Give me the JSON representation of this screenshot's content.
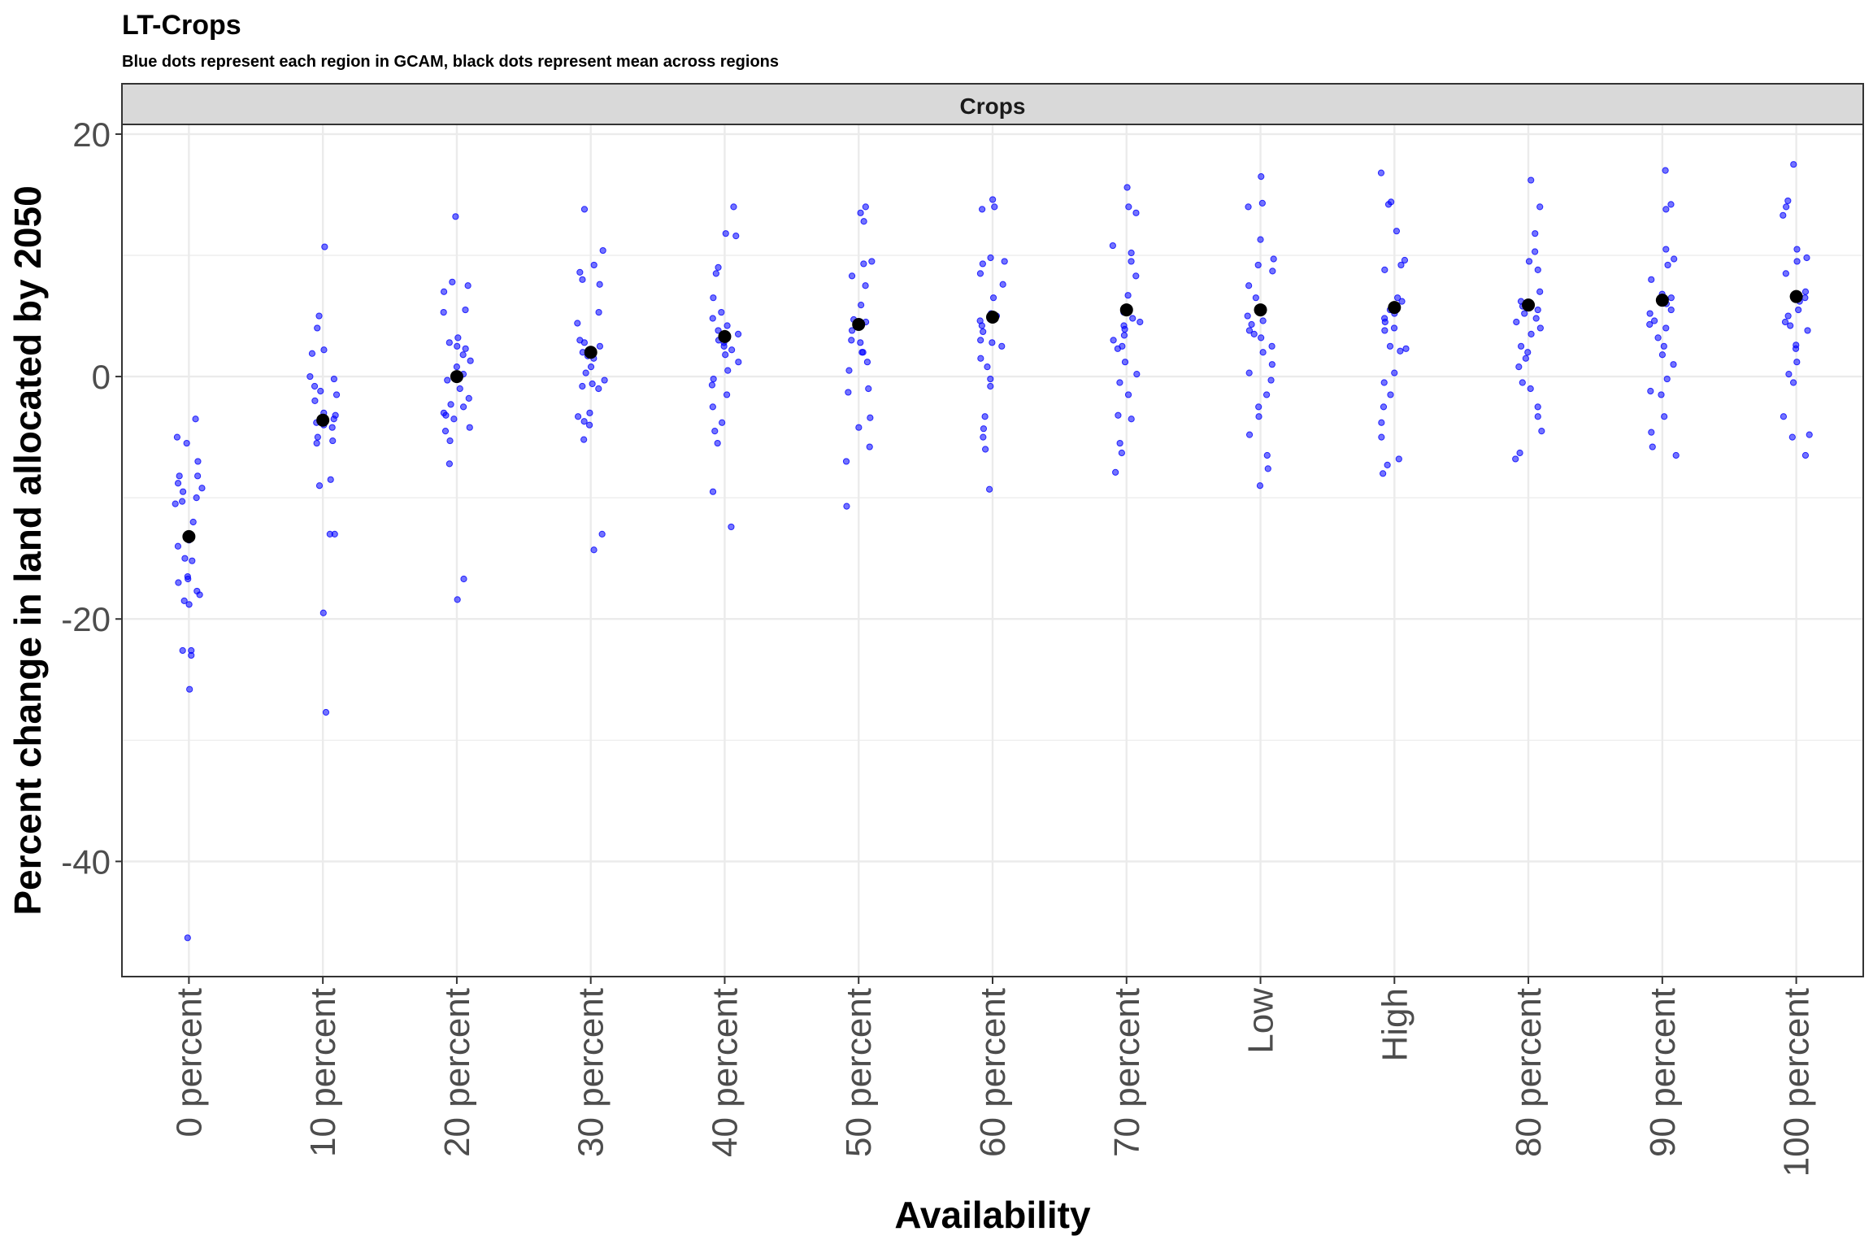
{
  "chart_data": {
    "type": "scatter",
    "title": "LT-Crops",
    "subtitle": "Blue dots represent each region in GCAM, black dots represent mean across regions",
    "facet_label": "Crops",
    "xlabel": "Availability",
    "ylabel": "Percent change in land allocated by 2050",
    "categories": [
      "0 percent",
      "10 percent",
      "20 percent",
      "30 percent",
      "40 percent",
      "50 percent",
      "60 percent",
      "70 percent",
      "Low",
      "High",
      "80 percent",
      "90 percent",
      "100 percent"
    ],
    "ylim": [
      -49.5,
      20.8
    ],
    "yticks": [
      20,
      0,
      -20,
      -40
    ],
    "ytick_labels": [
      "20",
      "0",
      "-20",
      "-40"
    ],
    "grid": true,
    "colors": {
      "region_points": "#0000ff",
      "mean_points": "#000000",
      "grid": "#ebebeb",
      "strip_background": "#d9d9d9",
      "panel_border": "#333333"
    },
    "series": [
      {
        "name": "Blue dots",
        "values": [
          [
            -3.5,
            -5.0,
            -5.5,
            -7.0,
            -8.2,
            -8.2,
            -8.8,
            -9.2,
            -9.5,
            -10.0,
            -10.5,
            -10.3,
            -12.0,
            -13.5,
            -14.0,
            -15.0,
            -15.2,
            -16.5,
            -16.7,
            -17.0,
            -17.7,
            -18.0,
            -18.5,
            -18.8,
            -22.6,
            -22.6,
            -23.0,
            -25.8,
            -46.3
          ],
          [
            10.7,
            5.0,
            4.0,
            2.2,
            1.9,
            0.0,
            -0.2,
            -0.8,
            -1.2,
            -1.5,
            -2.0,
            -3.0,
            -3.2,
            -3.5,
            -3.8,
            -4.0,
            -4.2,
            -5.0,
            -5.3,
            -5.5,
            -8.5,
            -9.0,
            -13.0,
            -13.0,
            -19.5,
            -27.7
          ],
          [
            13.2,
            7.8,
            7.5,
            7.0,
            5.5,
            5.3,
            3.2,
            2.8,
            2.5,
            2.3,
            1.8,
            1.3,
            0.8,
            0.2,
            -0.3,
            -1.0,
            -1.8,
            -2.3,
            -2.5,
            -3.0,
            -3.2,
            -3.5,
            -4.2,
            -4.5,
            -5.3,
            -7.2,
            -16.7,
            -18.4
          ],
          [
            13.8,
            10.4,
            9.2,
            8.6,
            8.0,
            7.6,
            5.3,
            4.4,
            3.0,
            2.8,
            2.5,
            2.0,
            1.7,
            1.5,
            0.8,
            0.3,
            -0.3,
            -0.6,
            -0.8,
            -1.0,
            -3.0,
            -3.3,
            -3.7,
            -4.0,
            -5.2,
            -13.0,
            -14.3
          ],
          [
            14.0,
            11.8,
            11.6,
            9.0,
            8.5,
            6.5,
            5.3,
            4.8,
            4.2,
            3.8,
            3.5,
            3.0,
            2.8,
            2.5,
            2.2,
            1.8,
            1.2,
            0.5,
            -0.2,
            -0.7,
            -1.5,
            -2.5,
            -3.8,
            -4.5,
            -5.5,
            -9.5,
            -12.4
          ],
          [
            14.0,
            13.5,
            12.8,
            9.5,
            9.3,
            8.3,
            7.5,
            5.9,
            4.7,
            4.5,
            4.3,
            3.8,
            3.0,
            2.8,
            2.0,
            2.0,
            1.2,
            0.5,
            -1.0,
            -1.3,
            -3.4,
            -4.2,
            -5.8,
            -7.0,
            -10.7
          ],
          [
            14.6,
            14.0,
            13.8,
            9.8,
            9.5,
            9.3,
            8.5,
            7.6,
            6.5,
            5.2,
            5.0,
            4.6,
            4.2,
            3.7,
            3.0,
            2.8,
            2.5,
            1.5,
            0.8,
            -0.2,
            -0.8,
            -3.3,
            -4.3,
            -5.0,
            -6.0,
            -9.3
          ],
          [
            15.6,
            14.0,
            13.5,
            10.8,
            10.2,
            9.5,
            8.3,
            6.7,
            5.3,
            4.8,
            4.5,
            4.2,
            3.9,
            3.4,
            3.0,
            2.5,
            2.3,
            1.2,
            0.2,
            -0.5,
            -1.5,
            -3.2,
            -3.5,
            -5.5,
            -6.3,
            -7.9
          ],
          [
            16.5,
            14.3,
            14.0,
            11.3,
            9.7,
            9.2,
            8.7,
            7.5,
            6.5,
            5.0,
            4.6,
            4.3,
            3.8,
            3.5,
            3.2,
            2.5,
            2.0,
            1.0,
            0.3,
            -0.3,
            -1.5,
            -2.5,
            -3.3,
            -4.8,
            -6.5,
            -7.6,
            -9.0
          ],
          [
            16.8,
            14.4,
            14.2,
            12.0,
            9.6,
            9.2,
            8.8,
            6.5,
            6.2,
            5.5,
            5.2,
            4.8,
            4.5,
            4.0,
            3.8,
            2.5,
            2.3,
            2.1,
            0.3,
            -0.5,
            -1.5,
            -2.5,
            -3.8,
            -5.0,
            -6.8,
            -7.3,
            -8.0
          ],
          [
            16.2,
            14.0,
            11.8,
            10.3,
            9.5,
            8.8,
            7.0,
            6.2,
            5.8,
            5.5,
            5.2,
            4.8,
            4.5,
            4.0,
            3.5,
            2.5,
            2.0,
            1.5,
            0.8,
            -0.5,
            -1.0,
            -2.5,
            -3.3,
            -4.5,
            -6.3,
            -6.8
          ],
          [
            17.0,
            14.2,
            13.8,
            10.5,
            9.7,
            9.2,
            8.0,
            6.8,
            6.5,
            6.0,
            5.5,
            5.2,
            4.6,
            4.3,
            4.0,
            3.2,
            2.5,
            1.8,
            1.0,
            -0.2,
            -1.2,
            -1.5,
            -3.3,
            -4.6,
            -5.8,
            -6.5
          ],
          [
            17.5,
            14.5,
            14.0,
            13.3,
            10.5,
            9.8,
            9.5,
            8.5,
            7.0,
            6.5,
            6.2,
            5.5,
            5.0,
            4.5,
            4.2,
            3.8,
            2.6,
            2.3,
            1.2,
            0.2,
            -0.5,
            -3.3,
            -4.8,
            -5.0,
            -6.5
          ]
        ]
      },
      {
        "name": "black dots",
        "values": [
          -13.2,
          -3.6,
          0.0,
          2.0,
          3.3,
          4.3,
          4.9,
          5.5,
          5.5,
          5.7,
          5.9,
          6.3,
          6.6
        ]
      }
    ]
  }
}
